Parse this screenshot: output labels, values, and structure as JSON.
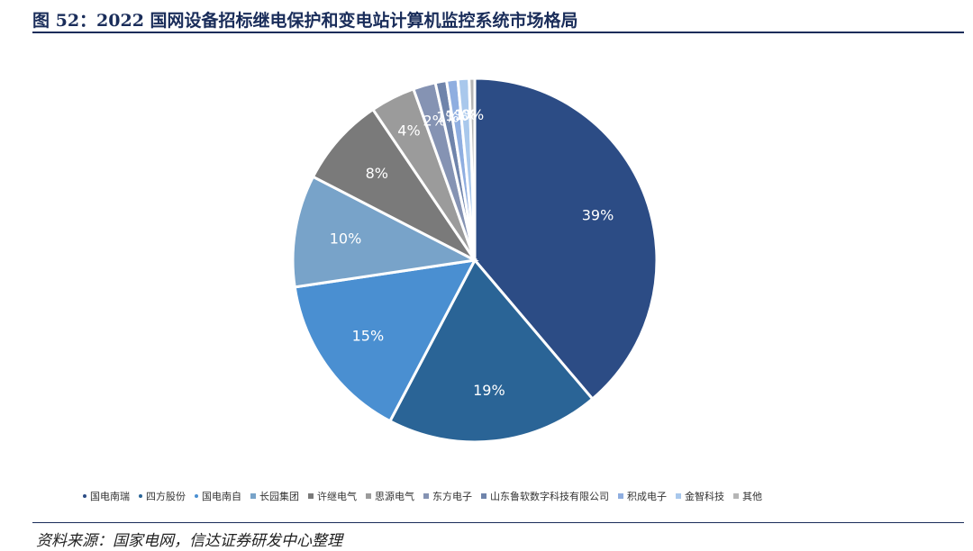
{
  "title": "图 52：2022 国网设备招标继电保护和变电站计算机监控系统市场格局",
  "source": "资料来源：国家电网，信达证券研发中心整理",
  "chart_data": {
    "type": "pie",
    "start_angle_deg": 0,
    "direction": "clockwise",
    "legend_position": "bottom",
    "slices": [
      {
        "name": "国电南瑞",
        "value": 39,
        "label": "39%",
        "color": "#2c4c85"
      },
      {
        "name": "四方股份",
        "value": 19,
        "label": "19%",
        "color": "#2a6496"
      },
      {
        "name": "国电南自",
        "value": 15,
        "label": "15%",
        "color": "#4a8fd1"
      },
      {
        "name": "长园集团",
        "value": 10,
        "label": "10%",
        "color": "#78a3c9"
      },
      {
        "name": "许继电气",
        "value": 8,
        "label": "8%",
        "color": "#7a7a7a"
      },
      {
        "name": "思源电气",
        "value": 4,
        "label": "4%",
        "color": "#9b9b9b"
      },
      {
        "name": "东方电子",
        "value": 2,
        "label": "2%",
        "color": "#8593b3"
      },
      {
        "name": "山东鲁软数字科技有限公司",
        "value": 1,
        "label": "1%",
        "color": "#6f84ab"
      },
      {
        "name": "积成电子",
        "value": 1,
        "label": "1%",
        "color": "#8faee0"
      },
      {
        "name": "金智科技",
        "value": 1,
        "label": "1%",
        "color": "#a9c8ec"
      },
      {
        "name": "其他",
        "value": 0.5,
        "label": "0%",
        "color": "#b5b5b5"
      }
    ]
  }
}
